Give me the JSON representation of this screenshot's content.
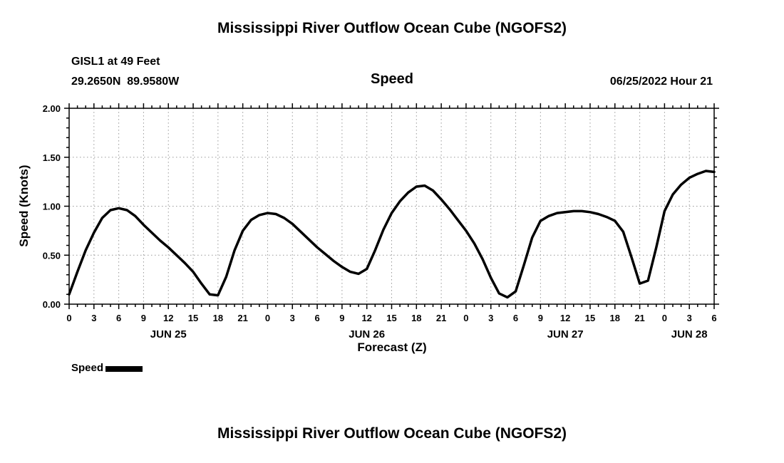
{
  "titles": {
    "main": "Mississippi River Outflow Ocean Cube (NGOFS2)",
    "bottom": "Mississippi River Outflow Ocean Cube (NGOFS2)"
  },
  "header": {
    "station": "GISL1 at 49 Feet",
    "coordinates": "29.2650N  89.9580W",
    "panel_label": "Speed",
    "datetime": "06/25/2022 Hour 21"
  },
  "axes": {
    "ylabel": "Speed (Knots)",
    "xlabel": "Forecast (Z)"
  },
  "legend": {
    "label": "Speed"
  },
  "colors": {
    "line": "#000000",
    "grid": "#999999",
    "frame": "#000000"
  },
  "chart_data": {
    "type": "line",
    "title": "Speed",
    "xlabel": "Forecast (Z)",
    "ylabel": "Speed (Knots)",
    "ylim": [
      0.0,
      2.0
    ],
    "grid": true,
    "legend_position": "bottom-left",
    "x_hours_total": 78,
    "x_major_every": 3,
    "x_tick_labels": [
      "0",
      "3",
      "6",
      "9",
      "12",
      "15",
      "18",
      "21",
      "0",
      "3",
      "6",
      "9",
      "12",
      "15",
      "18",
      "21",
      "0",
      "3",
      "6",
      "9",
      "12",
      "15",
      "18",
      "21",
      "0",
      "3",
      "6"
    ],
    "y_major_ticks": [
      0.0,
      0.5,
      1.0,
      1.5,
      2.0
    ],
    "y_tick_labels": [
      "0.00",
      "0.50",
      "1.00",
      "1.50",
      "2.00"
    ],
    "dates": [
      {
        "label": "JUN 25",
        "t": 12
      },
      {
        "label": "JUN 26",
        "t": 36
      },
      {
        "label": "JUN 27",
        "t": 60
      },
      {
        "label": "JUN 28",
        "t": 75
      }
    ],
    "series": [
      {
        "name": "Speed",
        "x": [
          0,
          1,
          2,
          3,
          4,
          5,
          6,
          7,
          8,
          9,
          10,
          11,
          12,
          13,
          14,
          15,
          16,
          17,
          18,
          19,
          20,
          21,
          22,
          23,
          24,
          25,
          26,
          27,
          28,
          29,
          30,
          31,
          32,
          33,
          34,
          35,
          36,
          37,
          38,
          39,
          40,
          41,
          42,
          43,
          44,
          45,
          46,
          47,
          48,
          49,
          50,
          51,
          52,
          53,
          54,
          55,
          56,
          57,
          58,
          59,
          60,
          61,
          62,
          63,
          64,
          65,
          66,
          67,
          68,
          69,
          70,
          71,
          72,
          73,
          74,
          75,
          76,
          77,
          78
        ],
        "values": [
          0.1,
          0.33,
          0.55,
          0.73,
          0.88,
          0.96,
          0.98,
          0.96,
          0.9,
          0.81,
          0.73,
          0.65,
          0.58,
          0.5,
          0.42,
          0.33,
          0.21,
          0.1,
          0.09,
          0.28,
          0.55,
          0.75,
          0.86,
          0.91,
          0.93,
          0.92,
          0.88,
          0.82,
          0.74,
          0.66,
          0.58,
          0.51,
          0.44,
          0.38,
          0.33,
          0.31,
          0.36,
          0.55,
          0.76,
          0.93,
          1.05,
          1.14,
          1.2,
          1.21,
          1.16,
          1.07,
          0.97,
          0.86,
          0.75,
          0.62,
          0.46,
          0.27,
          0.11,
          0.07,
          0.13,
          0.4,
          0.68,
          0.85,
          0.9,
          0.93,
          0.94,
          0.95,
          0.95,
          0.94,
          0.92,
          0.89,
          0.85,
          0.74,
          0.48,
          0.21,
          0.24,
          0.58,
          0.95,
          1.12,
          1.22,
          1.29,
          1.33,
          1.36,
          1.35
        ]
      }
    ]
  }
}
